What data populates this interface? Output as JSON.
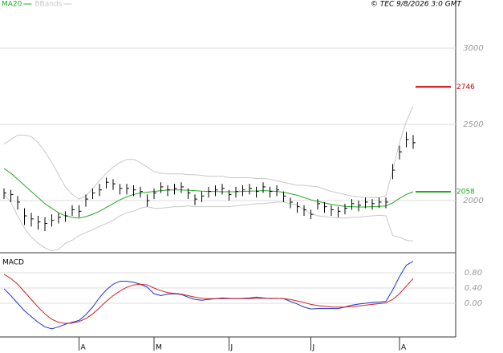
{
  "header": {
    "copyright": "© TEC 9/8/2026 3:0 GMT"
  },
  "chart_data": [
    {
      "type": "ohlc",
      "ylim": [
        1658,
        3316
      ],
      "yticks": [
        2000,
        2500,
        3000
      ],
      "grid": true,
      "ohlc": {
        "color": "#000000",
        "high": [
          2080,
          2070,
          2030,
          1950,
          1920,
          1900,
          1890,
          1910,
          1920,
          1930,
          1970,
          1970,
          2040,
          2080,
          2110,
          2150,
          2140,
          2110,
          2110,
          2100,
          2090,
          2040,
          2080,
          2120,
          2100,
          2110,
          2120,
          2080,
          2040,
          2060,
          2090,
          2100,
          2110,
          2070,
          2090,
          2100,
          2110,
          2090,
          2120,
          2090,
          2100,
          2060,
          2020,
          1990,
          1970,
          1940,
          2010,
          1990,
          1970,
          1960,
          1980,
          2010,
          2000,
          2020,
          2010,
          2020,
          2020,
          2240,
          2360,
          2450,
          2430
        ],
        "low": [
          2010,
          1990,
          1940,
          1840,
          1830,
          1810,
          1800,
          1830,
          1850,
          1860,
          1900,
          1890,
          1960,
          2010,
          2030,
          2080,
          2070,
          2040,
          2040,
          2030,
          2020,
          1960,
          2010,
          2050,
          2030,
          2040,
          2050,
          2010,
          1970,
          1990,
          2020,
          2030,
          2040,
          2000,
          2020,
          2030,
          2040,
          2020,
          2050,
          2020,
          2030,
          1990,
          1950,
          1920,
          1900,
          1880,
          1940,
          1920,
          1900,
          1890,
          1910,
          1940,
          1930,
          1950,
          1940,
          1950,
          1950,
          2140,
          2270,
          2350,
          2340
        ],
        "close": [
          2050,
          2040,
          1990,
          1900,
          1880,
          1860,
          1850,
          1870,
          1890,
          1900,
          1940,
          1930,
          2010,
          2050,
          2070,
          2120,
          2110,
          2080,
          2080,
          2070,
          2060,
          2000,
          2050,
          2090,
          2070,
          2080,
          2090,
          2050,
          2010,
          2030,
          2060,
          2070,
          2080,
          2040,
          2060,
          2070,
          2080,
          2060,
          2090,
          2060,
          2070,
          2030,
          1990,
          1960,
          1940,
          1910,
          1980,
          1960,
          1940,
          1930,
          1950,
          1980,
          1970,
          1990,
          1980,
          1990,
          1990,
          2200,
          2320,
          2400,
          2380
        ]
      },
      "series": [
        {
          "name": "MA20",
          "color": "#22aa22",
          "values": [
            2210,
            2180,
            2140,
            2100,
            2060,
            2020,
            1980,
            1950,
            1920,
            1900,
            1890,
            1885,
            1895,
            1910,
            1930,
            1955,
            1980,
            2005,
            2025,
            2040,
            2050,
            2055,
            2060,
            2065,
            2070,
            2070,
            2070,
            2068,
            2065,
            2062,
            2060,
            2060,
            2058,
            2058,
            2058,
            2060,
            2062,
            2063,
            2065,
            2063,
            2060,
            2055,
            2045,
            2035,
            2020,
            2005,
            1995,
            1985,
            1975,
            1968,
            1962,
            1960,
            1958,
            1958,
            1960,
            1962,
            1965,
            1985,
            2015,
            2040,
            2058
          ]
        },
        {
          "name": "BBands",
          "color": "#c8c8c8",
          "upper": [
            2370,
            2400,
            2430,
            2430,
            2420,
            2380,
            2320,
            2250,
            2170,
            2090,
            2040,
            2010,
            2030,
            2080,
            2130,
            2180,
            2220,
            2250,
            2270,
            2270,
            2250,
            2220,
            2190,
            2180,
            2175,
            2175,
            2175,
            2170,
            2170,
            2165,
            2160,
            2160,
            2160,
            2150,
            2150,
            2150,
            2150,
            2145,
            2145,
            2140,
            2130,
            2120,
            2110,
            2100,
            2100,
            2095,
            2090,
            2075,
            2060,
            2050,
            2040,
            2030,
            2025,
            2020,
            2020,
            2020,
            2030,
            2200,
            2380,
            2520,
            2620
          ],
          "lower": [
            2040,
            1990,
            1900,
            1820,
            1760,
            1720,
            1690,
            1670,
            1680,
            1720,
            1740,
            1770,
            1790,
            1810,
            1830,
            1850,
            1870,
            1900,
            1920,
            1930,
            1950,
            1960,
            1950,
            1950,
            1955,
            1960,
            1960,
            1965,
            1960,
            1960,
            1960,
            1960,
            1960,
            1960,
            1965,
            1970,
            1975,
            1980,
            1980,
            1985,
            1990,
            1990,
            1980,
            1970,
            1940,
            1915,
            1900,
            1895,
            1890,
            1886,
            1885,
            1890,
            1891,
            1896,
            1900,
            1904,
            1900,
            1770,
            1760,
            1740,
            1735
          ]
        }
      ],
      "levels": [
        {
          "value": 2746,
          "color": "#cc0000"
        },
        {
          "value": 2058,
          "color": "#22aa22"
        }
      ]
    },
    {
      "type": "line",
      "title": "MACD",
      "ylim": [
        -0.884,
        1.263
      ],
      "yticks": [
        {
          "value": 0,
          "label": "0.00"
        },
        {
          "value": 0.4,
          "label": "0.40"
        },
        {
          "value": 0.8,
          "label": "0.80"
        }
      ],
      "grid": true,
      "categories": [
        null,
        null,
        null,
        null,
        null,
        null,
        null,
        null,
        null,
        null,
        null,
        "A",
        null,
        null,
        null,
        null,
        null,
        null,
        null,
        null,
        null,
        null,
        "M",
        null,
        null,
        null,
        null,
        null,
        null,
        null,
        null,
        null,
        null,
        "J",
        null,
        null,
        null,
        null,
        null,
        null,
        null,
        null,
        null,
        null,
        null,
        "J",
        null,
        null,
        null,
        null,
        null,
        null,
        null,
        null,
        null,
        null,
        null,
        null,
        "A",
        null,
        null
      ],
      "series": [
        {
          "color": "#2233cc",
          "values": [
            0.38,
            0.2,
            0.0,
            -0.2,
            -0.35,
            -0.5,
            -0.62,
            -0.67,
            -0.62,
            -0.55,
            -0.5,
            -0.45,
            -0.3,
            -0.1,
            0.15,
            0.35,
            0.5,
            0.58,
            0.58,
            0.55,
            0.5,
            0.42,
            0.25,
            0.2,
            0.24,
            0.25,
            0.23,
            0.16,
            0.1,
            0.08,
            0.1,
            0.12,
            0.14,
            0.13,
            0.12,
            0.13,
            0.14,
            0.16,
            0.14,
            0.12,
            0.13,
            0.12,
            0.05,
            -0.02,
            -0.1,
            -0.15,
            -0.14,
            -0.14,
            -0.14,
            -0.14,
            -0.1,
            -0.05,
            -0.02,
            0.0,
            0.02,
            0.03,
            0.05,
            0.35,
            0.7,
            1.0,
            1.1
          ]
        },
        {
          "color": "#cc2222",
          "values": [
            0.76,
            0.65,
            0.5,
            0.3,
            0.1,
            -0.1,
            -0.28,
            -0.42,
            -0.5,
            -0.53,
            -0.52,
            -0.48,
            -0.4,
            -0.28,
            -0.12,
            0.05,
            0.2,
            0.32,
            0.42,
            0.48,
            0.5,
            0.48,
            0.4,
            0.33,
            0.28,
            0.26,
            0.24,
            0.2,
            0.16,
            0.13,
            0.12,
            0.12,
            0.12,
            0.12,
            0.12,
            0.12,
            0.12,
            0.13,
            0.13,
            0.13,
            0.13,
            0.12,
            0.1,
            0.06,
            0.02,
            -0.03,
            -0.06,
            -0.08,
            -0.1,
            -0.1,
            -0.1,
            -0.09,
            -0.07,
            -0.05,
            -0.03,
            -0.01,
            0.01,
            0.1,
            0.25,
            0.45,
            0.65
          ]
        }
      ]
    }
  ]
}
